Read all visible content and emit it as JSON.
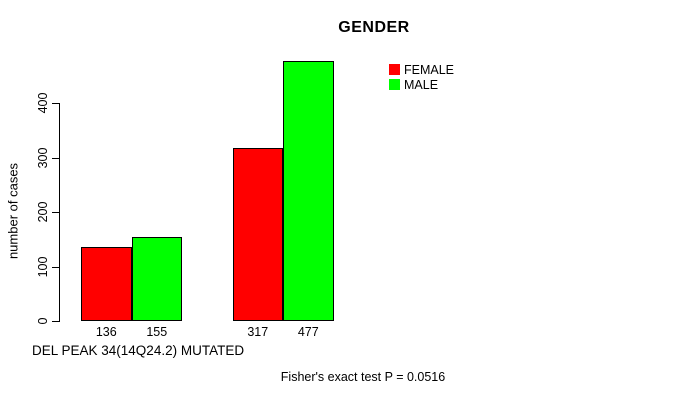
{
  "chart_data": {
    "type": "bar",
    "title": "GENDER",
    "ylabel": "number of cases",
    "xlabel": "DEL PEAK 34(14Q24.2) MUTATED",
    "annotation": "Fisher's exact test P = 0.0516",
    "series": [
      {
        "name": "FEMALE",
        "color": "#ff0000",
        "values": [
          136,
          317
        ]
      },
      {
        "name": "MALE",
        "color": "#00ff00",
        "values": [
          155,
          477
        ]
      }
    ],
    "bar_value_labels": [
      "136",
      "155",
      "317",
      "477"
    ],
    "yticks": [
      0,
      100,
      200,
      300,
      400
    ],
    "ylim": [
      0,
      480
    ],
    "grid": false,
    "legend_position": "top-right",
    "bar_border_color": "#000000",
    "axis_color": "#000000",
    "background_color": "#ffffff"
  }
}
